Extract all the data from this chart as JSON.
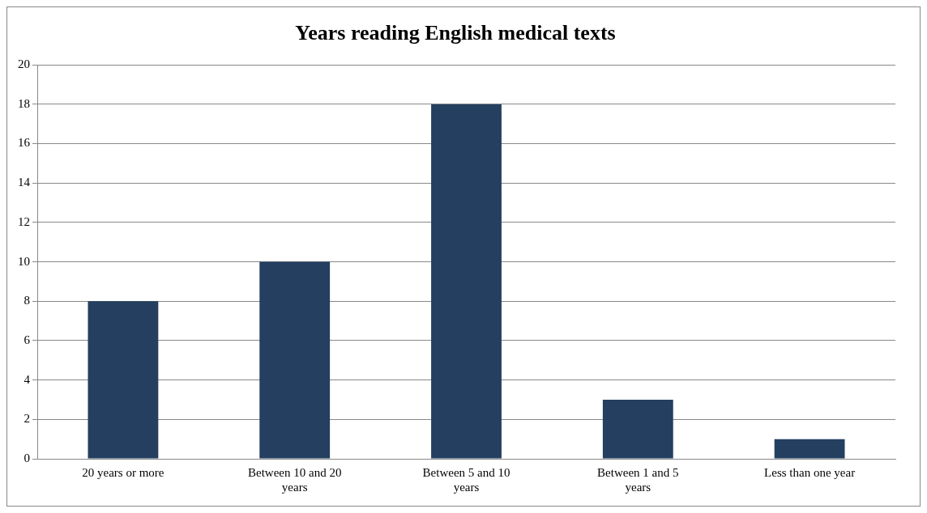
{
  "chart_data": {
    "type": "bar",
    "title": "Years reading English medical texts",
    "categories": [
      "20 years or more",
      "Between 10 and 20 years",
      "Between 5 and 10 years",
      "Between 1 and 5 years",
      "Less than one year"
    ],
    "values": [
      8,
      10,
      18,
      3,
      1
    ],
    "color": "#243f60",
    "ylim": [
      0,
      20
    ],
    "yticks": [
      0,
      2,
      4,
      6,
      8,
      10,
      12,
      14,
      16,
      18,
      20
    ],
    "grid": "y",
    "legend": false
  }
}
